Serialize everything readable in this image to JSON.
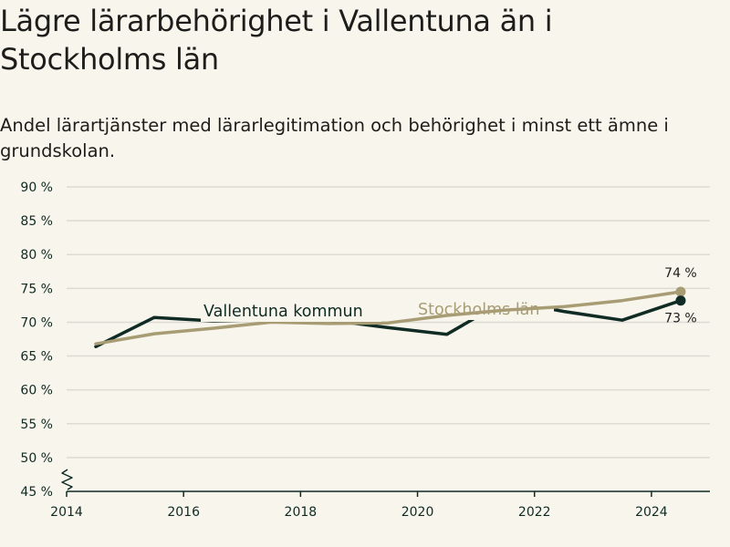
{
  "title": "Lägre lärarbehörighet i Vallentuna än i Stockholms län",
  "subtitle": "Andel lärartjänster med lärarlegitimation och behörighet i minst ett ämne i grundskolan.",
  "colors": {
    "background": "#f7f5ec",
    "vallentuna": "#0f2b24",
    "stockholm": "#a89c74",
    "grid": "#dddbd2",
    "axis": "#0f2b24"
  },
  "chart_data": {
    "type": "line",
    "xlim": [
      2014,
      2025
    ],
    "ylim": [
      45,
      90
    ],
    "y_ticks": [
      45,
      50,
      55,
      60,
      65,
      70,
      75,
      80,
      85,
      90
    ],
    "y_tick_labels": [
      "45 %",
      "50 %",
      "55 %",
      "60 %",
      "65 %",
      "70 %",
      "75 %",
      "80 %",
      "85 %",
      "90 %"
    ],
    "x_ticks": [
      2014,
      2016,
      2018,
      2020,
      2022,
      2024
    ],
    "x_tick_labels": [
      "2014",
      "2016",
      "2018",
      "2020",
      "2022",
      "2024"
    ],
    "axis_break": true,
    "grid": "horizontal",
    "series": [
      {
        "name": "Stockholms län",
        "color": "#a89c74",
        "x": [
          2014.5,
          2015.5,
          2016.5,
          2017.5,
          2018.5,
          2019.5,
          2020.5,
          2021.5,
          2022.5,
          2023.5,
          2024.5
        ],
        "values": [
          66.8,
          68.3,
          69.1,
          70.0,
          69.8,
          69.9,
          71.0,
          71.8,
          72.3,
          73.2,
          74.5
        ],
        "end_label": "74 %"
      },
      {
        "name": "Vallentuna kommun",
        "color": "#0f2b24",
        "x": [
          2014.5,
          2015.5,
          2016.5,
          2017.5,
          2018.5,
          2019.5,
          2020.5,
          2021.5,
          2022.5,
          2023.5,
          2024.5
        ],
        "values": [
          66.4,
          70.7,
          70.2,
          70.4,
          70.3,
          69.2,
          68.2,
          73.2,
          71.6,
          70.3,
          73.2
        ],
        "end_label": "73 %"
      }
    ]
  }
}
